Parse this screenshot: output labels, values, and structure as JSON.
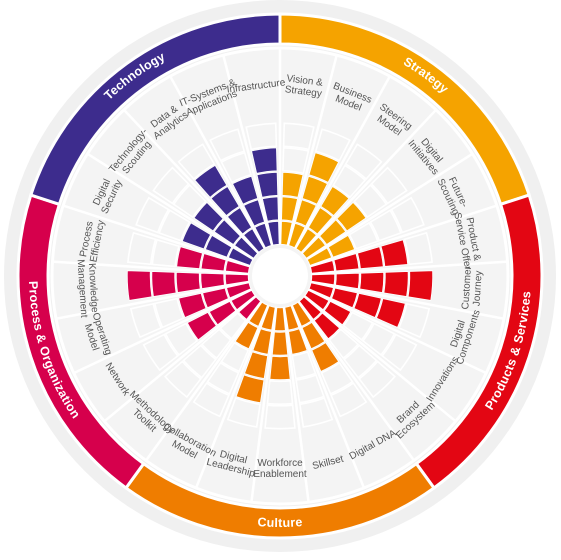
{
  "levels": 5,
  "categories": [
    {
      "name": "Strategy",
      "color": "#f5a300",
      "dimensions": [
        {
          "label": [
            "Vision &",
            "Strategy"
          ],
          "level": 3
        },
        {
          "label": [
            "Business",
            "Model"
          ],
          "level": 4
        },
        {
          "label": [
            "Steering",
            "Model"
          ],
          "level": 3
        },
        {
          "label": [
            "Digital",
            "Initiatives"
          ],
          "level": 3
        },
        {
          "label": [
            "Future-",
            "Scouting"
          ],
          "level": 2
        }
      ]
    },
    {
      "name": "Products & Services",
      "color": "#e30613",
      "dimensions": [
        {
          "label": [
            "Product &",
            "Service Offer"
          ],
          "level": 4
        },
        {
          "label": [
            "Customer",
            "Journey"
          ],
          "level": 5
        },
        {
          "label": [
            "Digital",
            "Components"
          ],
          "level": 4
        },
        {
          "label": [
            "Innovations"
          ],
          "level": 2
        },
        {
          "label": [
            "Brand",
            "Ecosystem"
          ],
          "level": 2
        }
      ]
    },
    {
      "name": "Culture",
      "color": "#ef7d00",
      "dimensions": [
        {
          "label": [
            "Digital DNA"
          ],
          "level": 3
        },
        {
          "label": [
            "Skillset"
          ],
          "level": 2
        },
        {
          "label": [
            "Workforce",
            "Enablement"
          ],
          "level": 3
        },
        {
          "label": [
            "Digital",
            "Leadership"
          ],
          "level": 4
        },
        {
          "label": [
            "Collaboration",
            "Model"
          ],
          "level": 2
        }
      ]
    },
    {
      "name": "Process & Organization",
      "color": "#d6004c",
      "dimensions": [
        {
          "label": [
            "Methodology",
            "Toolkit"
          ],
          "level": 1
        },
        {
          "label": [
            "Network"
          ],
          "level": 3
        },
        {
          "label": [
            "Operating",
            "Model"
          ],
          "level": 3
        },
        {
          "label": [
            "Knowledge",
            "Management"
          ],
          "level": 5
        },
        {
          "label": [
            "Process",
            "Efficiency"
          ],
          "level": 3
        }
      ]
    },
    {
      "name": "Technology",
      "color": "#3d2c8d",
      "dimensions": [
        {
          "label": [
            "Digital",
            "Security"
          ],
          "level": 3
        },
        {
          "label": [
            "Technology-",
            "Scouting"
          ],
          "level": 3
        },
        {
          "label": [
            "Data &",
            "Analytics"
          ],
          "level": 4
        },
        {
          "label": [
            "IT-Systems &",
            "Applications"
          ],
          "level": 3
        },
        {
          "label": [
            "Infrastructure"
          ],
          "level": 4
        }
      ]
    }
  ]
}
